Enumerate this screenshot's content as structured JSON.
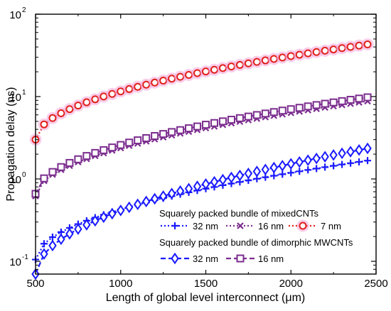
{
  "chart_data": {
    "type": "line",
    "xlabel": "Length of global level interconnect (μm)",
    "ylabel": "Propagation delay (ns)",
    "xlim": [
      500,
      2500
    ],
    "ylim": [
      0.07,
      100
    ],
    "yscale": "log",
    "grid": false,
    "x_ticks": [
      "500",
      "1000",
      "1500",
      "2000",
      "2500"
    ],
    "y_ticks": [
      {
        "base": "10",
        "exp": "-1"
      },
      {
        "base": "10",
        "exp": "0"
      },
      {
        "base": "10",
        "exp": "1"
      },
      {
        "base": "10",
        "exp": "2"
      }
    ],
    "legend": {
      "placement": "bottom-right",
      "group1_title": "Squarely packed bundle of mixedCNTs",
      "group2_title": "Squarely packed bundle of dimorphic MWCNTs"
    },
    "x_range": {
      "start": 500,
      "end": 2450,
      "step": 50
    },
    "series": [
      {
        "group": 1,
        "name": "32 nm",
        "color": "#1a1aff",
        "marker": "plus",
        "dash": "dotted",
        "a": 0.105,
        "b": 1.67
      },
      {
        "group": 1,
        "name": "16 nm",
        "color": "#7b2d8e",
        "marker": "x",
        "dash": "dotted",
        "a": 0.62,
        "b": 8.8
      },
      {
        "group": 1,
        "name": "7 nm",
        "color": "#e0201b",
        "marker": "circle",
        "dash": "dotted",
        "halo": "#f4a6d8",
        "a": 3.0,
        "b": 43.0
      },
      {
        "group": 2,
        "name": "32 nm",
        "color": "#1a1aff",
        "marker": "diamond",
        "dash": "dashed",
        "a": 0.07,
        "b": 2.35
      },
      {
        "group": 2,
        "name": "16 nm",
        "color": "#7b2d8e",
        "marker": "square",
        "dash": "dashed",
        "a": 0.66,
        "b": 9.8
      }
    ]
  }
}
